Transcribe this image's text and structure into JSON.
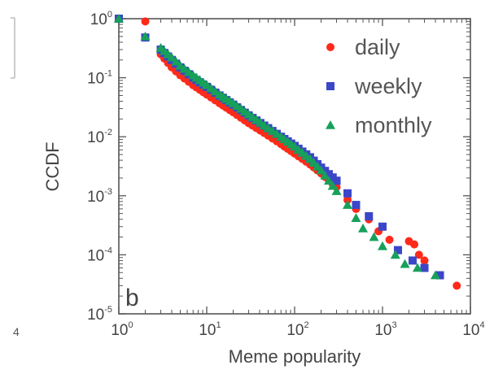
{
  "colors": {
    "daily": "#ff2a1a",
    "weekly": "#3c46c8",
    "monthly": "#17a05a"
  },
  "edge_fragments": {
    "bottom_left": "4"
  },
  "chart_data": {
    "type": "scatter",
    "title": "",
    "xlabel": "Meme popularity",
    "ylabel": "CCDF",
    "x_scale": "log",
    "y_scale": "log",
    "xlim": [
      1,
      10000
    ],
    "ylim": [
      1e-05,
      1
    ],
    "x_ticks": [
      {
        "base": "10",
        "exp": "0",
        "value": 1
      },
      {
        "base": "10",
        "exp": "1",
        "value": 10
      },
      {
        "base": "10",
        "exp": "2",
        "value": 100
      },
      {
        "base": "10",
        "exp": "3",
        "value": 1000
      },
      {
        "base": "10",
        "exp": "4",
        "value": 10000
      }
    ],
    "y_ticks": [
      {
        "base": "10",
        "exp": "0",
        "value": 1
      },
      {
        "base": "10",
        "exp": "-1",
        "value": 0.1
      },
      {
        "base": "10",
        "exp": "-2",
        "value": 0.01
      },
      {
        "base": "10",
        "exp": "-3",
        "value": 0.001
      },
      {
        "base": "10",
        "exp": "-4",
        "value": 0.0001
      },
      {
        "base": "10",
        "exp": "-5",
        "value": 1e-05
      }
    ],
    "grid": false,
    "legend_position": "top-right",
    "panel_label": "b",
    "series": [
      {
        "name": "daily",
        "marker": "circle",
        "points": [
          [
            1,
            1
          ],
          [
            2,
            0.9
          ],
          [
            3,
            0.25
          ],
          [
            4,
            0.15
          ],
          [
            5,
            0.11
          ],
          [
            7,
            0.075
          ],
          [
            10,
            0.052
          ],
          [
            14,
            0.037
          ],
          [
            20,
            0.026
          ],
          [
            30,
            0.017
          ],
          [
            50,
            0.0105
          ],
          [
            70,
            0.0075
          ],
          [
            100,
            0.0052
          ],
          [
            150,
            0.0034
          ],
          [
            200,
            0.0024
          ],
          [
            300,
            0.0014
          ],
          [
            400,
            0.00085
          ],
          [
            500,
            0.0006
          ],
          [
            700,
            0.0004
          ],
          [
            900,
            0.00025
          ],
          [
            1200,
            0.00018
          ],
          [
            2000,
            0.00017
          ],
          [
            2300,
            0.00015
          ],
          [
            2600,
            0.0001
          ],
          [
            3000,
            8e-05
          ],
          [
            7000,
            3e-05
          ]
        ]
      },
      {
        "name": "weekly",
        "marker": "square",
        "points": [
          [
            1,
            1
          ],
          [
            2,
            0.48
          ],
          [
            3,
            0.3
          ],
          [
            4,
            0.2
          ],
          [
            5,
            0.15
          ],
          [
            7,
            0.1
          ],
          [
            10,
            0.07
          ],
          [
            14,
            0.05
          ],
          [
            20,
            0.035
          ],
          [
            30,
            0.023
          ],
          [
            50,
            0.014
          ],
          [
            70,
            0.01
          ],
          [
            100,
            0.007
          ],
          [
            150,
            0.0045
          ],
          [
            200,
            0.003
          ],
          [
            300,
            0.0018
          ],
          [
            400,
            0.0011
          ],
          [
            500,
            0.0007
          ],
          [
            700,
            0.00045
          ],
          [
            1000,
            0.0003
          ],
          [
            1500,
            0.00012
          ],
          [
            2200,
            8e-05
          ],
          [
            3000,
            6e-05
          ],
          [
            4500,
            4.5e-05
          ]
        ]
      },
      {
        "name": "monthly",
        "marker": "triangle",
        "points": [
          [
            1,
            1
          ],
          [
            2,
            0.5
          ],
          [
            3,
            0.32
          ],
          [
            4,
            0.22
          ],
          [
            5,
            0.16
          ],
          [
            7,
            0.11
          ],
          [
            10,
            0.075
          ],
          [
            14,
            0.052
          ],
          [
            20,
            0.037
          ],
          [
            30,
            0.024
          ],
          [
            50,
            0.014
          ],
          [
            70,
            0.01
          ],
          [
            100,
            0.0068
          ],
          [
            150,
            0.0042
          ],
          [
            200,
            0.0027
          ],
          [
            300,
            0.0012
          ],
          [
            400,
            0.0007
          ],
          [
            500,
            0.00042
          ],
          [
            600,
            0.00028
          ],
          [
            800,
            0.0002
          ],
          [
            1000,
            0.00014
          ],
          [
            1400,
            0.0001
          ],
          [
            1800,
            7e-05
          ],
          [
            2500,
            6e-05
          ],
          [
            4000,
            4.5e-05
          ]
        ]
      }
    ]
  }
}
